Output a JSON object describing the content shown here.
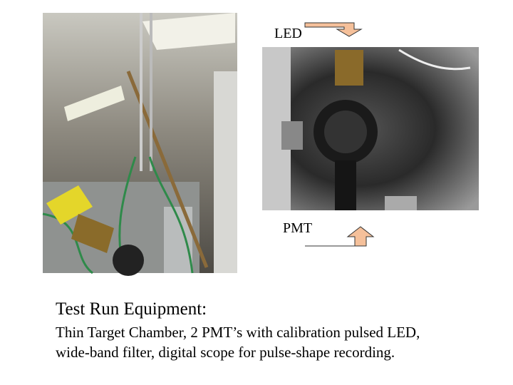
{
  "labels": {
    "led": "LED",
    "pmt": "PMT"
  },
  "caption": {
    "heading": "Test Run Equipment:",
    "lines": [
      "Thin Target Chamber, 2 PMT’s with calibration pulsed LED,",
      "wide-band filter, digital scope for pulse-shape recording."
    ]
  }
}
